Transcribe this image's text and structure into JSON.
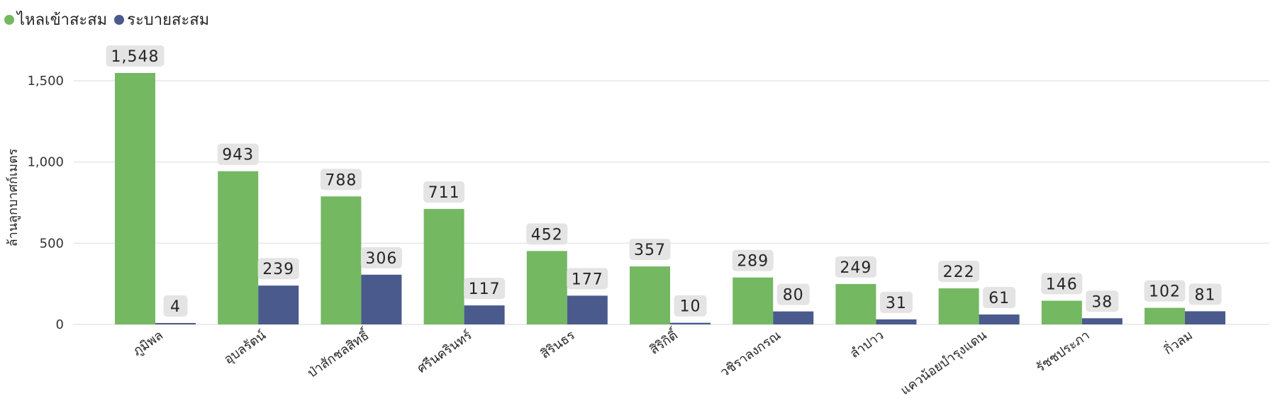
{
  "legend": {
    "inflow_label": "ไหลเข้าสะสม",
    "outflow_label": "ระบายสะสม"
  },
  "colors": {
    "inflow": "#74b862",
    "outflow": "#4a5a8c",
    "label_bg": "#e4e4e4",
    "grid": "#e6e6e6"
  },
  "chart_data": {
    "type": "bar",
    "ylabel": "ล้านลูกบาศก์เมตร",
    "ylim": [
      0,
      1700
    ],
    "yticks": [
      0,
      500,
      1000,
      1500
    ],
    "ytick_labels": [
      "0",
      "500",
      "1,000",
      "1,500"
    ],
    "grid": true,
    "legend_position": "top-left",
    "categories": [
      "ภูมิพล",
      "อุบลรัตน์",
      "ป่าสักชลสิทธิ์",
      "ศรีนครินทร์",
      "สิรินธร",
      "สิริกิติ์",
      "วชิราลงกรณ",
      "ลำปาว",
      "แควน้อยบำรุงแดน",
      "รัชชประภา",
      "กิ่วลม"
    ],
    "series": [
      {
        "name": "ไหลเข้าสะสม",
        "values": [
          1548,
          943,
          788,
          711,
          452,
          357,
          289,
          249,
          222,
          146,
          102
        ],
        "labels": [
          "1,548",
          "943",
          "788",
          "711",
          "452",
          "357",
          "289",
          "249",
          "222",
          "146",
          "102"
        ]
      },
      {
        "name": "ระบายสะสม",
        "values": [
          4,
          239,
          306,
          117,
          177,
          10,
          80,
          31,
          61,
          38,
          81
        ],
        "labels": [
          "4",
          "239",
          "306",
          "117",
          "177",
          "10",
          "80",
          "31",
          "61",
          "38",
          "81"
        ]
      }
    ]
  }
}
